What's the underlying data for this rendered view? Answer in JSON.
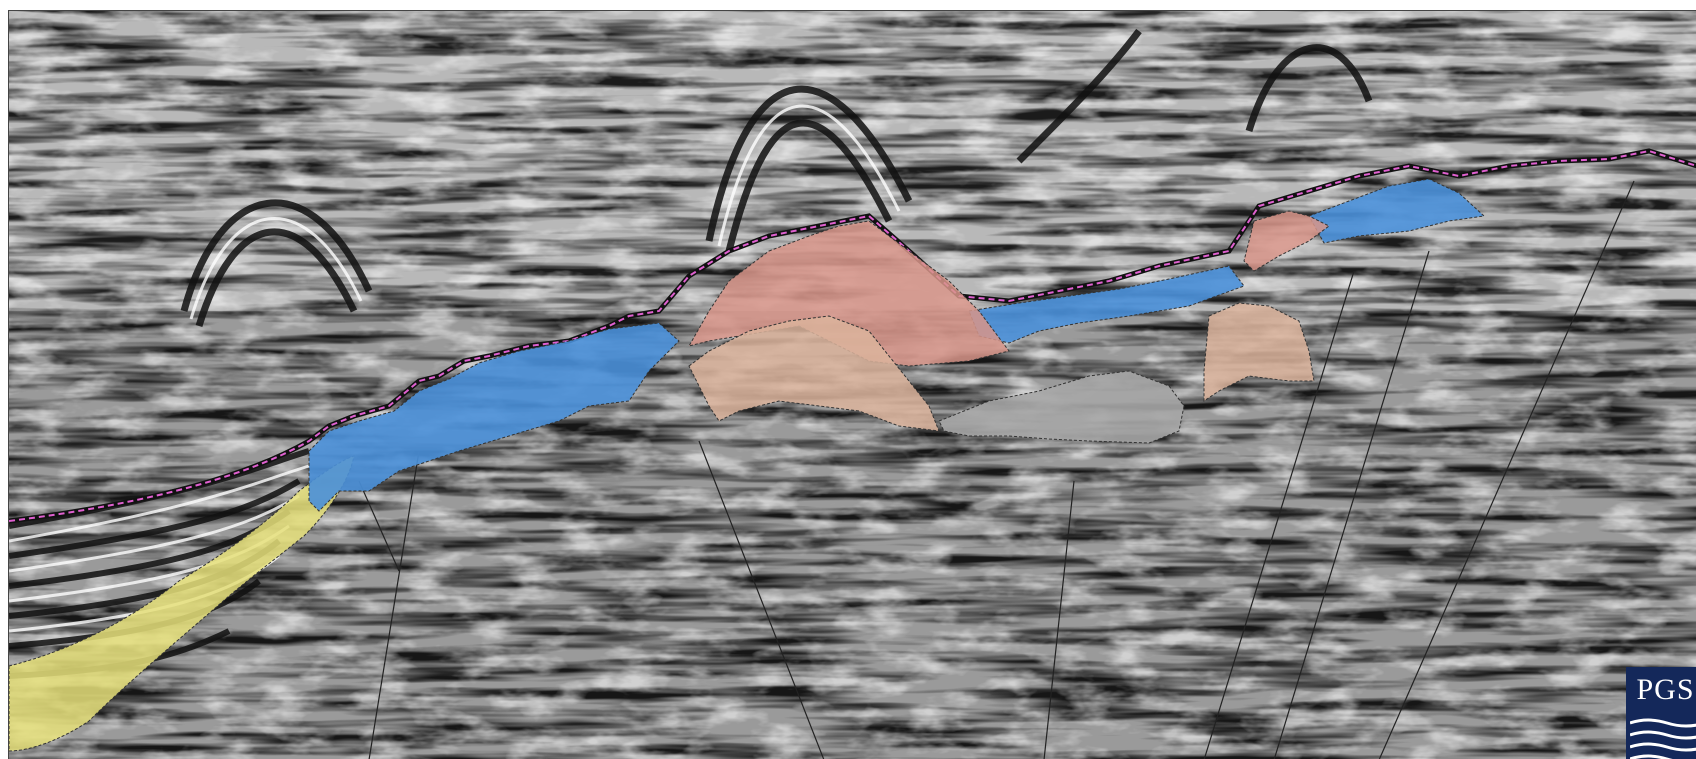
{
  "figure": {
    "description_kind": "seismic-cross-section",
    "logo": {
      "text": "PGS",
      "background": "#14285a",
      "text_color": "#ffffff"
    },
    "colors": {
      "salt_blue": "#4a90d9",
      "carbonate_pink": "#d8958a",
      "tan_unit": "#dcb49c",
      "grey_unit": "#a6a6a6",
      "yellow_unit": "#e6e07a",
      "horizon_magenta": "#e060d0",
      "fault_line": "#222222"
    },
    "legend_items": []
  }
}
